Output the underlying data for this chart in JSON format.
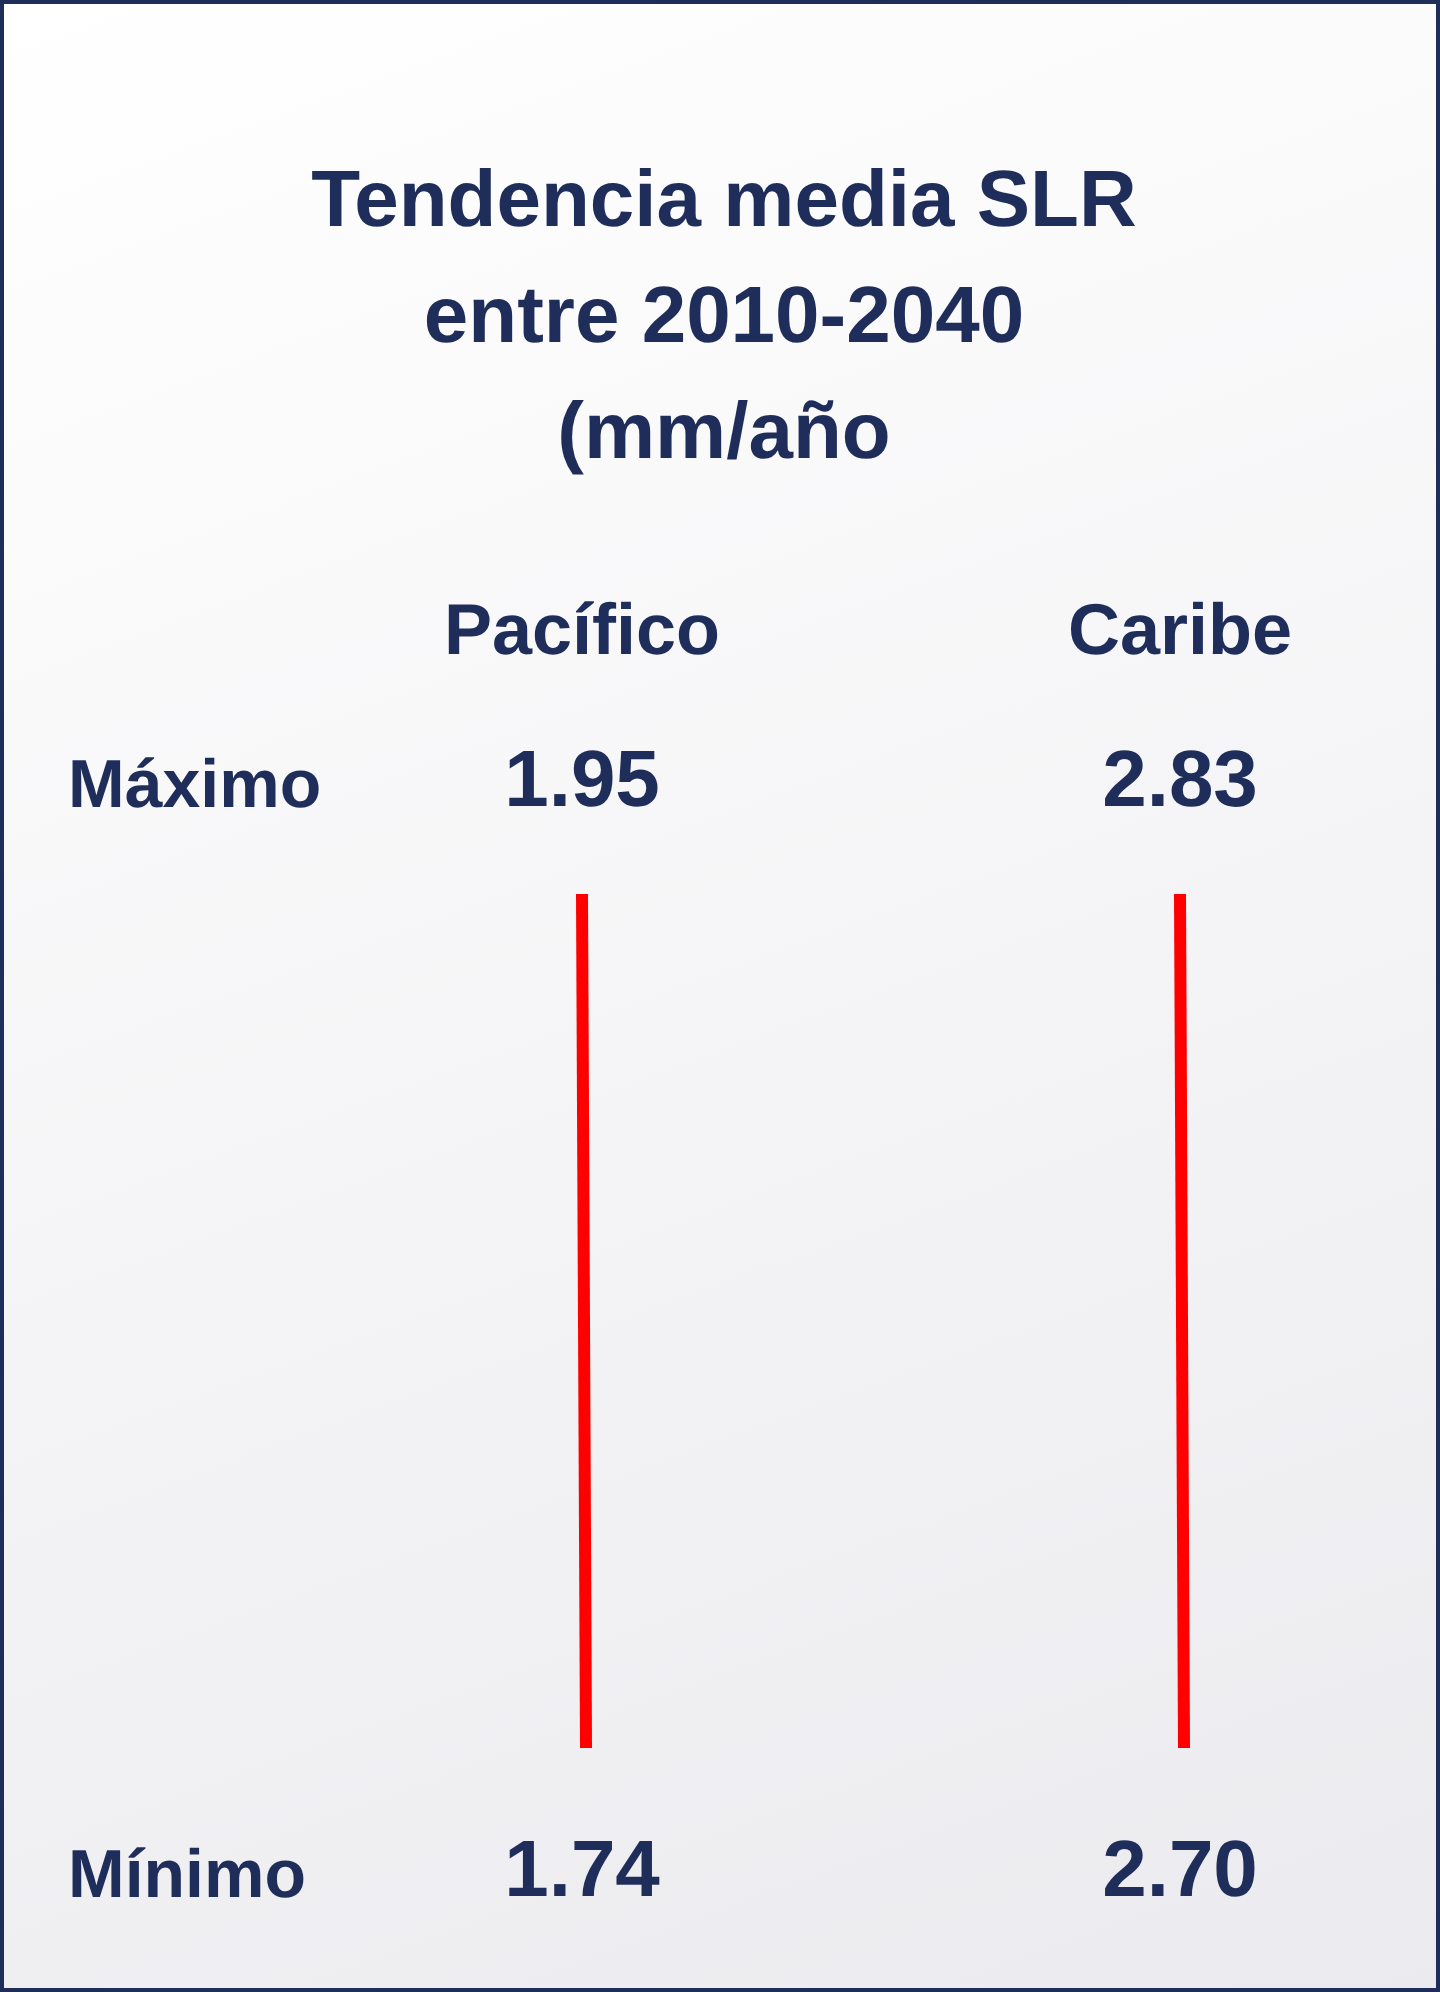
{
  "chart_data": {
    "type": "other",
    "title": "Tendencia media SLR\nentre 2010-2040\n(mm/año",
    "categories": [
      "Pacífico",
      "Caribe"
    ],
    "series": [
      {
        "name": "Máximo",
        "values": [
          1.95,
          2.83
        ],
        "value_labels": [
          "1.95",
          "2.83"
        ]
      },
      {
        "name": "Mínimo",
        "values": [
          1.74,
          2.7
        ],
        "value_labels": [
          "1.74",
          "2.70"
        ]
      }
    ]
  }
}
